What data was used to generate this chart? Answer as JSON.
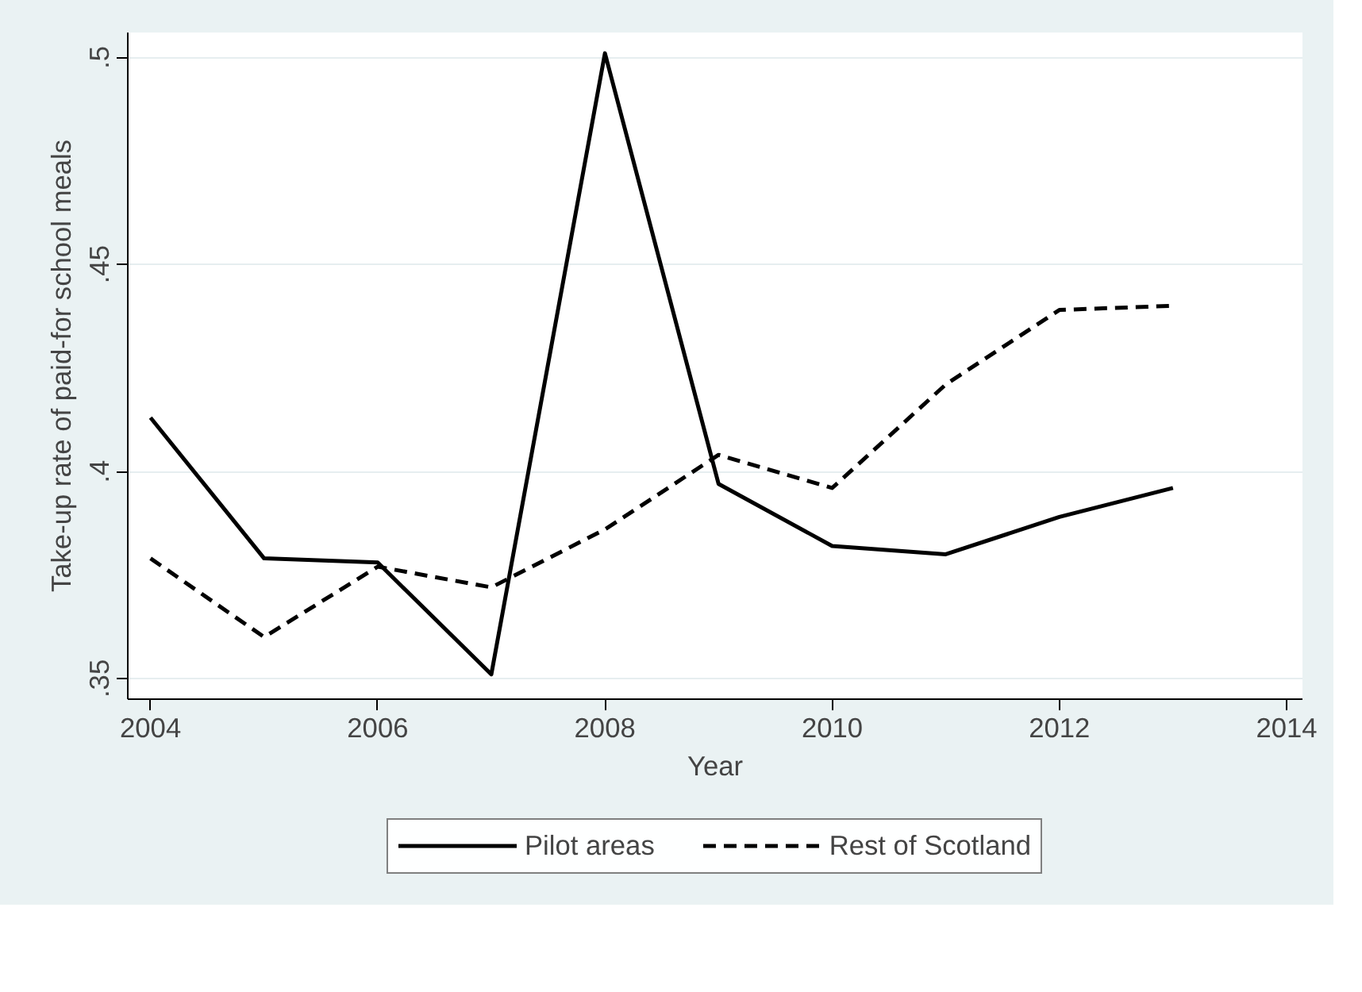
{
  "chart_data": {
    "type": "line",
    "xlabel": "Year",
    "ylabel": "Take-up rate of paid-for school meals",
    "x": [
      2004,
      2005,
      2006,
      2007,
      2008,
      2009,
      2010,
      2011,
      2012,
      2013
    ],
    "series": [
      {
        "name": "Pilot areas",
        "color": "#000000",
        "line_style": "solid",
        "values": [
          0.413,
          0.379,
          0.378,
          0.351,
          0.501,
          0.397,
          0.382,
          0.38,
          0.389,
          0.396
        ]
      },
      {
        "name": "Rest of Scotland",
        "color": "#000000",
        "line_style": "dashed",
        "values": [
          0.379,
          0.36,
          0.377,
          0.372,
          0.386,
          0.404,
          0.396,
          0.421,
          0.439,
          0.44
        ]
      }
    ],
    "xlim": [
      2003.8,
      2014.14
    ],
    "ylim": [
      0.345,
      0.506
    ],
    "xticks": [
      2004,
      2006,
      2008,
      2010,
      2012,
      2014
    ],
    "yticks": [
      {
        "value": 0.35,
        "label": ".35"
      },
      {
        "value": 0.4,
        "label": ".4"
      },
      {
        "value": 0.45,
        "label": ".45"
      },
      {
        "value": 0.5,
        "label": ".5"
      }
    ],
    "grid": "y",
    "legend": "bottom"
  }
}
